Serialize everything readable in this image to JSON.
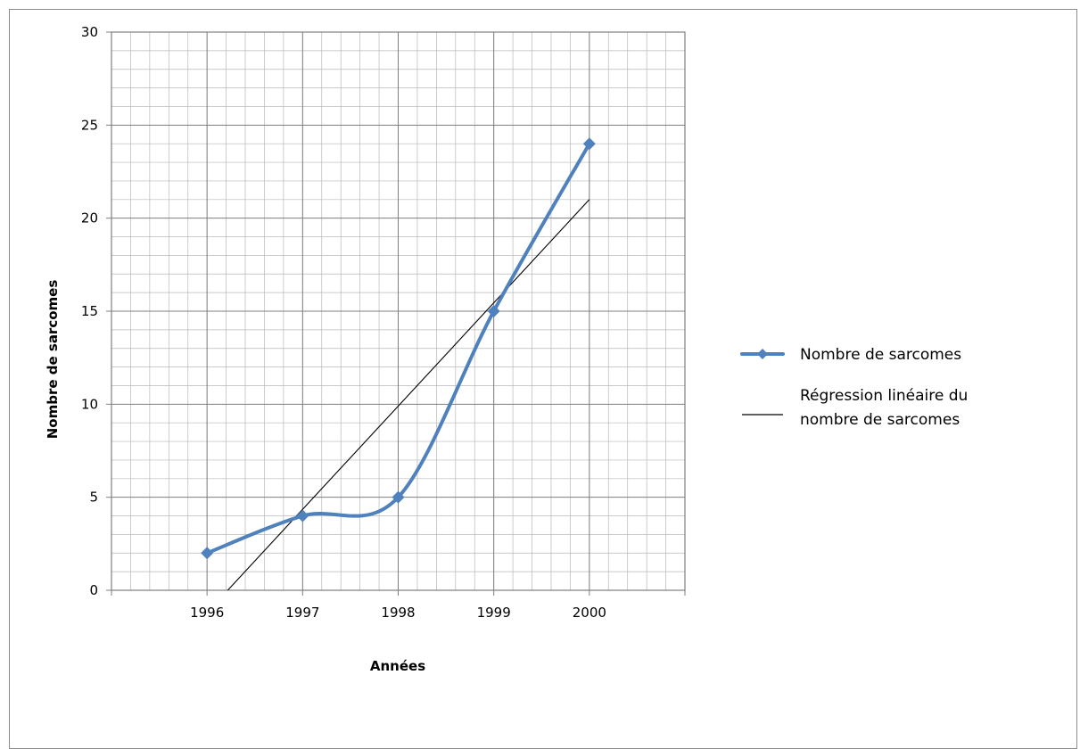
{
  "chart_data": {
    "type": "line",
    "title": "",
    "xlabel": "Années",
    "ylabel": "Nombre de sarcomes",
    "categories": [
      "1996",
      "1997",
      "1998",
      "1999",
      "2000"
    ],
    "ylim": [
      0,
      30
    ],
    "yticks": [
      "0",
      "5",
      "10",
      "15",
      "20",
      "25",
      "30"
    ],
    "grid": true,
    "legend_position": "right",
    "series": [
      {
        "name": "Nombre de sarcomes",
        "values": [
          2,
          4,
          5,
          15,
          24
        ],
        "color": "#4f81bd",
        "marker": "diamond",
        "smooth": true
      },
      {
        "name": "Régression linéaire du nombre de sarcomes",
        "legend_lines": [
          "Régression linéaire du",
          "nombre de sarcomes"
        ],
        "values": [
          -1.2,
          4.4,
          10,
          15.6,
          21
        ],
        "color": "#000000",
        "type": "trendline"
      }
    ]
  }
}
